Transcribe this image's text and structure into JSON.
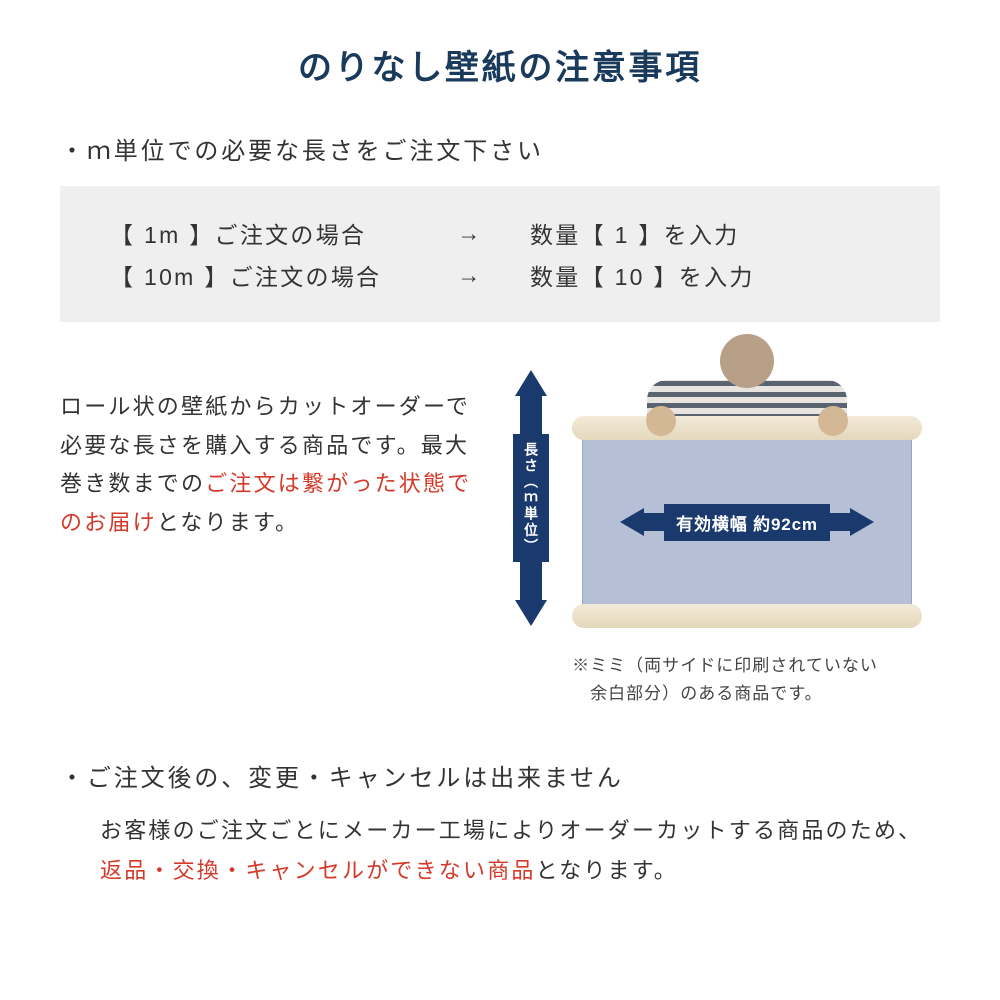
{
  "title": "のりなし壁紙の注意事項",
  "colors": {
    "title_color": "#1a3a5c",
    "body_text": "#333333",
    "warning_red": "#d43a2a",
    "example_bg": "#efefef",
    "arrow_navy": "#1a3a6e",
    "wallpaper_fill": "#b5c0d6",
    "roll_cream": "#e4d8bc",
    "background": "#ffffff"
  },
  "section1": {
    "heading": "・ｍ単位での必要な長さをご注文下さい",
    "examples": [
      {
        "left": "【 1m 】ご注文の場合",
        "arrow": "→",
        "right": "数量【 1 】を入力"
      },
      {
        "left": "【 10m 】ご注文の場合",
        "arrow": "→",
        "right": "数量【 10 】を入力"
      }
    ],
    "body_pre": "ロール状の壁紙からカットオーダーで必要な長さを購入する商品です。最大巻き数までの",
    "body_red": "ご注文は繋がった状態でのお届け",
    "body_post": "となります。"
  },
  "diagram": {
    "vertical_label": "長さ（ｍ単位）",
    "horizontal_label": "有効横幅 約92cm",
    "mimi_note_l1": "※ミミ（両サイドに印刷されていない",
    "mimi_note_l2": "　余白部分）のある商品です。"
  },
  "section2": {
    "heading": "・ご注文後の、変更・キャンセルは出来ません",
    "body_pre": "お客様のご注文ごとにメーカー工場によりオーダーカットする商品のため、",
    "body_red": "返品・交換・キャンセルができない商品",
    "body_post": "となります。"
  }
}
